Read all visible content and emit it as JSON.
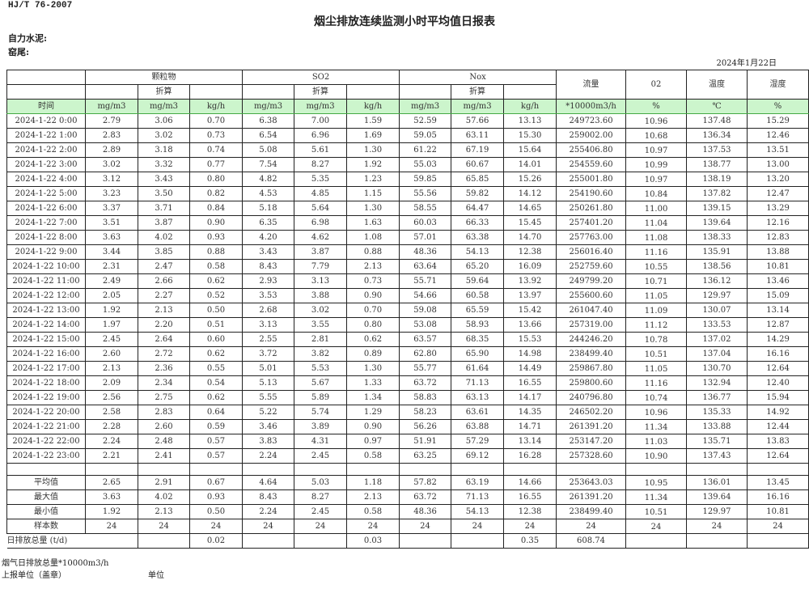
{
  "header": {
    "standard": "HJ/T  76-2007",
    "title": "烟尘排放连续监测小时平均值日报表",
    "company": "自力水泥:",
    "kiln": "窑尾:",
    "date": "2024年1月22日"
  },
  "table": {
    "groups": {
      "particulate": "颗粒物",
      "so2": "SO2",
      "nox": "Nox",
      "flow": "流量",
      "o2": "02",
      "temp": "温度",
      "humidity": "湿度"
    },
    "converted_label": "折算",
    "units": [
      "时间",
      "mg/m3",
      "mg/m3",
      "kg/h",
      "mg/m3",
      "mg/m3",
      "kg/h",
      "mg/m3",
      "mg/m3",
      "kg/h",
      "*10000m3/h",
      "%",
      "℃",
      "%"
    ],
    "rows": [
      [
        "2024-1-22 0:00",
        "2.79",
        "3.06",
        "0.70",
        "6.38",
        "7.00",
        "1.59",
        "52.59",
        "57.66",
        "13.13",
        "249723.60",
        "10.96",
        "137.48",
        "15.29"
      ],
      [
        "2024-1-22 1:00",
        "2.83",
        "3.02",
        "0.73",
        "6.54",
        "6.96",
        "1.69",
        "59.05",
        "63.11",
        "15.30",
        "259002.00",
        "10.68",
        "136.34",
        "12.46"
      ],
      [
        "2024-1-22 2:00",
        "2.89",
        "3.18",
        "0.74",
        "5.08",
        "5.61",
        "1.30",
        "61.22",
        "67.19",
        "15.64",
        "255406.80",
        "10.97",
        "137.53",
        "13.51"
      ],
      [
        "2024-1-22 3:00",
        "3.02",
        "3.32",
        "0.77",
        "7.54",
        "8.27",
        "1.92",
        "55.03",
        "60.67",
        "14.01",
        "254559.60",
        "10.99",
        "138.77",
        "13.00"
      ],
      [
        "2024-1-22 4:00",
        "3.12",
        "3.43",
        "0.80",
        "4.82",
        "5.35",
        "1.23",
        "59.85",
        "65.85",
        "15.26",
        "255001.80",
        "10.97",
        "138.19",
        "13.20"
      ],
      [
        "2024-1-22 5:00",
        "3.23",
        "3.50",
        "0.82",
        "4.53",
        "4.85",
        "1.15",
        "55.56",
        "59.82",
        "14.12",
        "254190.60",
        "10.84",
        "137.82",
        "12.47"
      ],
      [
        "2024-1-22 6:00",
        "3.37",
        "3.71",
        "0.84",
        "5.18",
        "5.64",
        "1.30",
        "58.55",
        "64.47",
        "14.65",
        "250261.80",
        "11.00",
        "139.15",
        "13.29"
      ],
      [
        "2024-1-22 7:00",
        "3.51",
        "3.87",
        "0.90",
        "6.35",
        "6.98",
        "1.63",
        "60.03",
        "66.33",
        "15.45",
        "257401.20",
        "11.04",
        "139.64",
        "12.16"
      ],
      [
        "2024-1-22 8:00",
        "3.63",
        "4.02",
        "0.93",
        "4.20",
        "4.62",
        "1.08",
        "57.01",
        "63.38",
        "14.70",
        "257763.00",
        "11.08",
        "138.33",
        "12.83"
      ],
      [
        "2024-1-22 9:00",
        "3.44",
        "3.85",
        "0.88",
        "3.43",
        "3.87",
        "0.88",
        "48.36",
        "54.13",
        "12.38",
        "256016.40",
        "11.16",
        "135.91",
        "13.88"
      ],
      [
        "2024-1-22 10:00",
        "2.31",
        "2.47",
        "0.58",
        "8.43",
        "7.79",
        "2.13",
        "63.64",
        "65.20",
        "16.09",
        "252759.60",
        "10.55",
        "138.56",
        "10.81"
      ],
      [
        "2024-1-22 11:00",
        "2.49",
        "2.66",
        "0.62",
        "2.93",
        "3.13",
        "0.73",
        "55.71",
        "59.64",
        "13.92",
        "249799.20",
        "10.71",
        "136.12",
        "13.46"
      ],
      [
        "2024-1-22 12:00",
        "2.05",
        "2.27",
        "0.52",
        "3.53",
        "3.88",
        "0.90",
        "54.66",
        "60.58",
        "13.97",
        "255600.60",
        "11.05",
        "129.97",
        "15.09"
      ],
      [
        "2024-1-22 13:00",
        "1.92",
        "2.13",
        "0.50",
        "2.68",
        "3.02",
        "0.70",
        "59.08",
        "65.59",
        "15.42",
        "261047.40",
        "11.09",
        "130.07",
        "13.14"
      ],
      [
        "2024-1-22 14:00",
        "1.97",
        "2.20",
        "0.51",
        "3.13",
        "3.55",
        "0.80",
        "53.08",
        "58.93",
        "13.66",
        "257319.00",
        "11.12",
        "133.53",
        "12.87"
      ],
      [
        "2024-1-22 15:00",
        "2.45",
        "2.64",
        "0.60",
        "2.55",
        "2.81",
        "0.62",
        "63.57",
        "68.35",
        "15.53",
        "244246.20",
        "10.78",
        "137.02",
        "14.29"
      ],
      [
        "2024-1-22 16:00",
        "2.60",
        "2.72",
        "0.62",
        "3.72",
        "3.82",
        "0.89",
        "62.80",
        "65.90",
        "14.98",
        "238499.40",
        "10.51",
        "137.04",
        "16.16"
      ],
      [
        "2024-1-22 17:00",
        "2.13",
        "2.36",
        "0.55",
        "5.01",
        "5.53",
        "1.30",
        "55.77",
        "61.64",
        "14.49",
        "259867.80",
        "11.05",
        "130.70",
        "12.64"
      ],
      [
        "2024-1-22 18:00",
        "2.09",
        "2.34",
        "0.54",
        "5.13",
        "5.67",
        "1.33",
        "63.72",
        "71.13",
        "16.55",
        "259800.60",
        "11.16",
        "132.94",
        "12.40"
      ],
      [
        "2024-1-22 19:00",
        "2.56",
        "2.75",
        "0.62",
        "5.55",
        "5.89",
        "1.34",
        "58.83",
        "63.13",
        "14.17",
        "240796.80",
        "10.74",
        "136.77",
        "15.94"
      ],
      [
        "2024-1-22 20:00",
        "2.58",
        "2.83",
        "0.64",
        "5.22",
        "5.74",
        "1.29",
        "58.23",
        "63.61",
        "14.35",
        "246502.20",
        "10.96",
        "135.33",
        "14.92"
      ],
      [
        "2024-1-22 21:00",
        "2.28",
        "2.60",
        "0.59",
        "3.46",
        "3.89",
        "0.90",
        "56.26",
        "63.88",
        "14.71",
        "261391.20",
        "11.34",
        "133.88",
        "12.44"
      ],
      [
        "2024-1-22 22:00",
        "2.24",
        "2.48",
        "0.57",
        "3.83",
        "4.31",
        "0.97",
        "51.91",
        "57.29",
        "13.14",
        "253147.20",
        "11.03",
        "135.71",
        "13.83"
      ],
      [
        "2024-1-22 23:00",
        "2.21",
        "2.41",
        "0.57",
        "2.24",
        "2.45",
        "0.58",
        "63.25",
        "69.12",
        "16.28",
        "257328.60",
        "10.90",
        "137.43",
        "12.64"
      ]
    ],
    "stats": [
      [
        "平均值",
        "2.65",
        "2.91",
        "0.67",
        "4.64",
        "5.03",
        "1.18",
        "57.82",
        "63.19",
        "14.66",
        "253643.03",
        "10.95",
        "136.01",
        "13.45"
      ],
      [
        "最大值",
        "3.63",
        "4.02",
        "0.93",
        "8.43",
        "8.27",
        "2.13",
        "63.72",
        "71.13",
        "16.55",
        "261391.20",
        "11.34",
        "139.64",
        "16.16"
      ],
      [
        "最小值",
        "1.92",
        "2.13",
        "0.50",
        "2.24",
        "2.45",
        "0.58",
        "48.36",
        "54.13",
        "12.38",
        "238499.40",
        "10.51",
        "129.97",
        "10.81"
      ],
      [
        "样本数",
        "24",
        "24",
        "24",
        "24",
        "24",
        "24",
        "24",
        "24",
        "24",
        "24",
        "24",
        "24",
        "24"
      ]
    ],
    "total": {
      "label": "日排放总量 (t/d)",
      "values": [
        "",
        "0.02",
        "",
        "",
        "0.03",
        "",
        "",
        "0.35",
        "608.74",
        "",
        "",
        ""
      ]
    }
  },
  "footer": {
    "flue_gas_total": "烟气日排放总量*10000m3/h",
    "reporting_unit": "上报单位（盖章）",
    "unit": "单位"
  }
}
